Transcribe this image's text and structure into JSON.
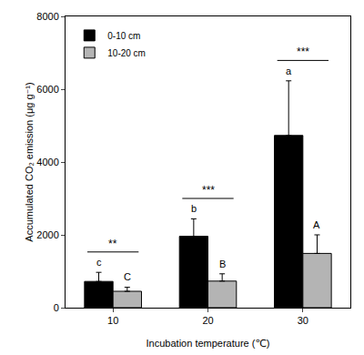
{
  "chart_data": {
    "type": "bar",
    "x_label": "Incubation temperature (℃)",
    "y_label": "Accumulated CO₂ emission (μg g⁻¹)",
    "categories": [
      "10",
      "20",
      "30"
    ],
    "series": [
      {
        "name": "0-10 cm",
        "color": "#000000",
        "values": [
          720,
          1960,
          4730
        ],
        "error": [
          250,
          480,
          1500
        ],
        "letters": [
          "c",
          "b",
          "a"
        ]
      },
      {
        "name": "10-20 cm",
        "color": "#b4b4b4",
        "values": [
          450,
          730,
          1490
        ],
        "error": [
          110,
          200,
          510
        ],
        "letters": [
          "C",
          "B",
          "A"
        ]
      }
    ],
    "significance": [
      "**",
      "***",
      "***"
    ],
    "ylim": [
      0,
      8000
    ],
    "yticks": [
      0,
      2000,
      4000,
      6000,
      8000
    ],
    "grid": false,
    "legend": "upper left",
    "data_labels": false
  }
}
